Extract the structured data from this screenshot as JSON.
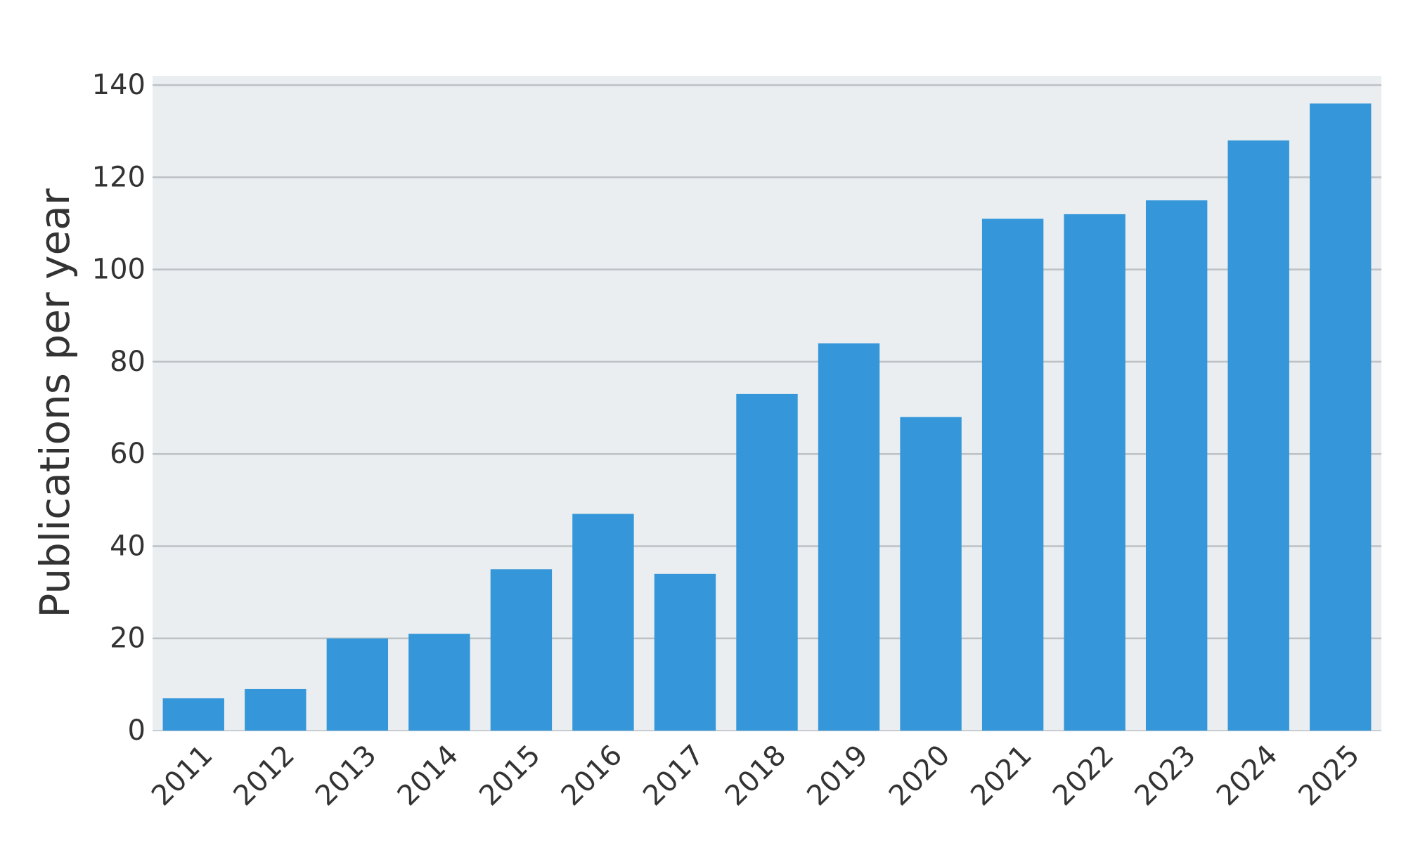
{
  "chart_data": {
    "type": "bar",
    "title": "",
    "xlabel": "",
    "ylabel": "Publications per year",
    "categories": [
      "2011",
      "2012",
      "2013",
      "2014",
      "2015",
      "2016",
      "2017",
      "2018",
      "2019",
      "2020",
      "2021",
      "2022",
      "2023",
      "2024",
      "2025"
    ],
    "values": [
      7,
      9,
      20,
      21,
      35,
      47,
      34,
      73,
      84,
      68,
      111,
      112,
      115,
      128,
      136
    ],
    "ylim": [
      0,
      142
    ],
    "yticks": [
      0,
      20,
      40,
      60,
      80,
      100,
      120,
      140
    ],
    "grid": "horizontal",
    "legend": "none",
    "colors": {
      "bar": "#3597da",
      "plot_background": "#eaeef0",
      "gridline": "#bcc1c5",
      "text": "#333333"
    }
  }
}
